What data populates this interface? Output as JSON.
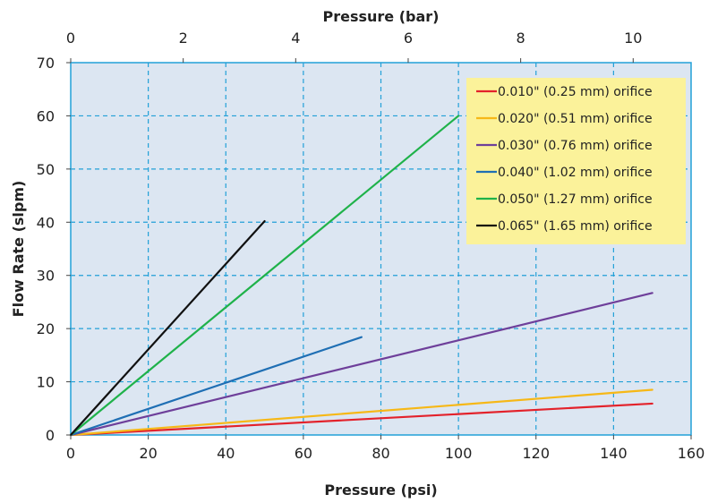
{
  "chart_data": {
    "type": "line",
    "xlabel": "Pressure (psi)",
    "ylabel": "Flow Rate (slpm)",
    "x2label": "Pressure (bar)",
    "xlim": [
      0,
      160
    ],
    "ylim": [
      0,
      70
    ],
    "x2lim": [
      0,
      11.03
    ],
    "xticks": [
      0,
      20,
      40,
      60,
      80,
      100,
      120,
      140,
      160
    ],
    "yticks": [
      0,
      10,
      20,
      30,
      40,
      50,
      60,
      70
    ],
    "x2ticks": [
      0,
      2,
      4,
      6,
      8,
      10
    ],
    "grid": true,
    "legend_position": "top-right",
    "colors": {
      "plot_background": "#dce6f2",
      "grid": "#22a0d8",
      "legend_background": "#fbf29a"
    },
    "series": [
      {
        "name": "0.010\" (0.25 mm) orifice",
        "color": "#e3222b",
        "x": [
          0,
          150
        ],
        "y": [
          0,
          5.9
        ]
      },
      {
        "name": "0.020\" (0.51 mm) orifice",
        "color": "#f6b817",
        "x": [
          0,
          150
        ],
        "y": [
          0,
          8.5
        ]
      },
      {
        "name": "0.030\" (0.76 mm) orifice",
        "color": "#6e3f9a",
        "x": [
          0,
          150
        ],
        "y": [
          0,
          26.7
        ]
      },
      {
        "name": "0.040\" (1.02 mm) orifice",
        "color": "#1f6fb4",
        "x": [
          0,
          75
        ],
        "y": [
          0,
          18.4
        ]
      },
      {
        "name": "0.050\" (1.27 mm) orifice",
        "color": "#1fb24a",
        "x": [
          0,
          100
        ],
        "y": [
          0,
          60
        ]
      },
      {
        "name": "0.065\" (1.65 mm) orifice",
        "color": "#111111",
        "x": [
          0,
          50
        ],
        "y": [
          0,
          40.2
        ]
      }
    ]
  }
}
